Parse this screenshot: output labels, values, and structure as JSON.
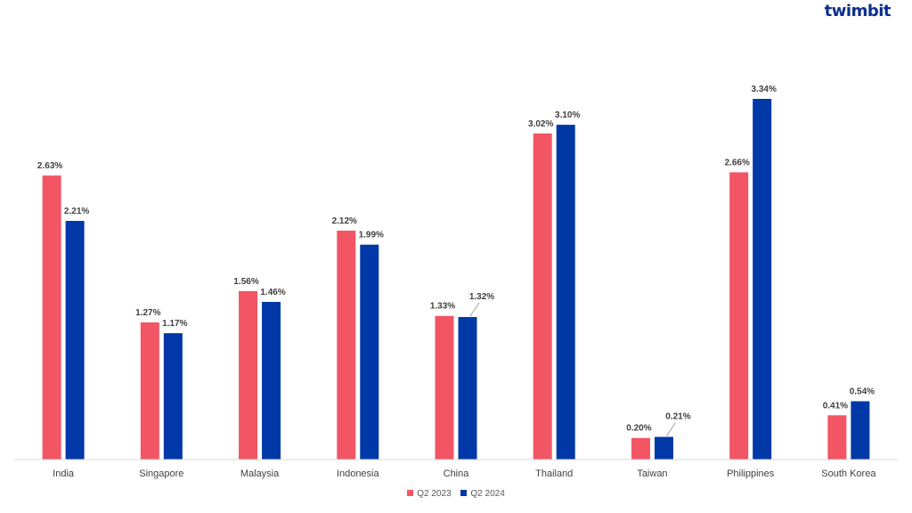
{
  "brand": {
    "logo_text": "twimbit",
    "color": "#0b2e8f"
  },
  "chart_data": {
    "type": "bar",
    "categories": [
      "India",
      "Singapore",
      "Malaysia",
      "Indonesia",
      "China",
      "Thailand",
      "Taiwan",
      "Philippines",
      "South Korea"
    ],
    "series": [
      {
        "name": "Q2 2023",
        "color": "#f25564",
        "values": [
          2.63,
          1.27,
          1.56,
          2.12,
          1.33,
          3.02,
          0.2,
          2.66,
          0.41
        ],
        "labels": [
          "2.63%",
          "1.27%",
          "1.56%",
          "2.12%",
          "1.33%",
          "3.02%",
          "0.20%",
          "2.66%",
          "0.41%"
        ]
      },
      {
        "name": "Q2 2024",
        "color": "#0038a8",
        "values": [
          2.21,
          1.17,
          1.46,
          1.99,
          1.32,
          3.1,
          0.21,
          3.34,
          0.54
        ],
        "labels": [
          "2.21%",
          "1.17%",
          "1.46%",
          "1.99%",
          "1.32%",
          "3.10%",
          "0.21%",
          "3.34%",
          "0.54%"
        ]
      }
    ],
    "title": "",
    "xlabel": "",
    "ylabel": "",
    "ylim": [
      0,
      3.34
    ],
    "grid": false,
    "legend_position": "bottom"
  }
}
